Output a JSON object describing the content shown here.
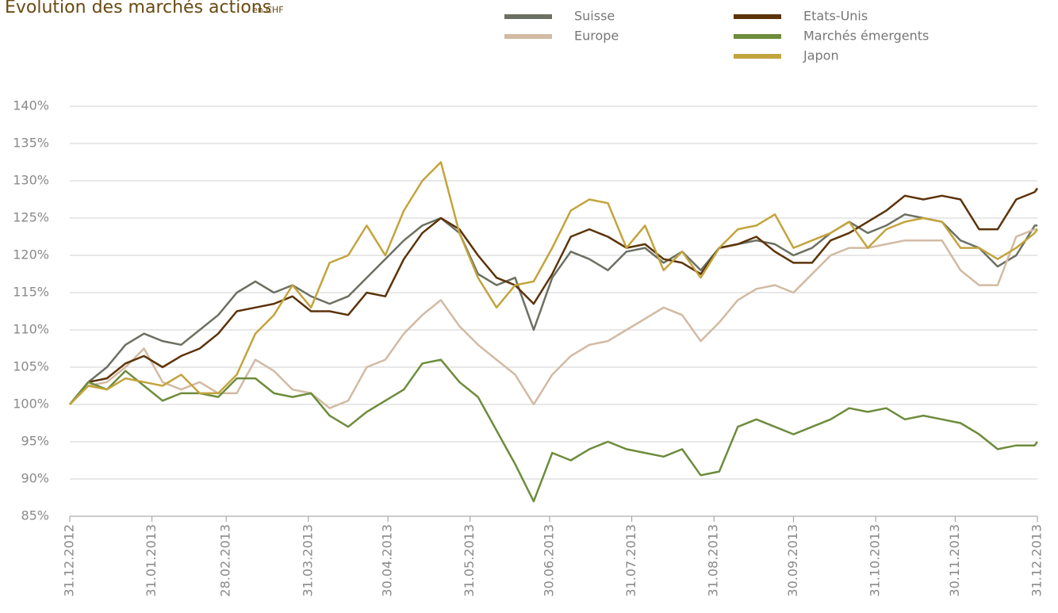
{
  "chart_data": {
    "type": "line",
    "title": "Evolution des marchés actions",
    "subtitle": "en CHF",
    "x": [
      "31.12.2012",
      "07.01.2013",
      "14.01.2013",
      "21.01.2013",
      "28.01.2013",
      "04.02.2013",
      "11.02.2013",
      "18.02.2013",
      "25.02.2013",
      "04.03.2013",
      "11.03.2013",
      "18.03.2013",
      "25.03.2013",
      "01.04.2013",
      "08.04.2013",
      "15.04.2013",
      "22.04.2013",
      "29.04.2013",
      "06.05.2013",
      "13.05.2013",
      "20.05.2013",
      "27.05.2013",
      "03.06.2013",
      "10.06.2013",
      "17.06.2013",
      "24.06.2013",
      "01.07.2013",
      "08.07.2013",
      "15.07.2013",
      "22.07.2013",
      "29.07.2013",
      "05.08.2013",
      "12.08.2013",
      "19.08.2013",
      "26.08.2013",
      "02.09.2013",
      "09.09.2013",
      "16.09.2013",
      "23.09.2013",
      "30.09.2013",
      "07.10.2013",
      "14.10.2013",
      "21.10.2013",
      "28.10.2013",
      "04.11.2013",
      "11.11.2013",
      "18.11.2013",
      "25.11.2013",
      "02.12.2013",
      "09.12.2013",
      "16.12.2013",
      "23.12.2013",
      "30.12.2013",
      "31.12.2013"
    ],
    "series": [
      {
        "name": "Suisse",
        "color": "#6b7062",
        "values": [
          100,
          103,
          105,
          108,
          109.5,
          108.5,
          108,
          110,
          112,
          115,
          116.5,
          115,
          116,
          114.5,
          113.5,
          114.5,
          117,
          119.5,
          122,
          124,
          125,
          123,
          117.5,
          116,
          117,
          110,
          117,
          120.5,
          119.5,
          118,
          120.5,
          121,
          119,
          120.5,
          118,
          121,
          121.5,
          122,
          121.5,
          120,
          121,
          123,
          124.5,
          123,
          124,
          125.5,
          125,
          124.5,
          122,
          121,
          118.5,
          120,
          124,
          124
        ]
      },
      {
        "name": "Europe",
        "color": "#d2baa3",
        "values": [
          100,
          102.5,
          103,
          105,
          107.5,
          103,
          102,
          103,
          101.5,
          101.5,
          106,
          104.5,
          102,
          101.5,
          99.5,
          100.5,
          105,
          106,
          109.5,
          112,
          114,
          110.5,
          108,
          106,
          104,
          100,
          104,
          106.5,
          108,
          108.5,
          110,
          111.5,
          113,
          112,
          108.5,
          111,
          114,
          115.5,
          116,
          115,
          117.5,
          120,
          121,
          121,
          121.5,
          122,
          122,
          122,
          118,
          116,
          116,
          122.5,
          123.5,
          123.5
        ]
      },
      {
        "name": "Etats-Unis",
        "color": "#5c3309",
        "values": [
          100,
          103,
          103.5,
          105.5,
          106.5,
          105,
          106.5,
          107.5,
          109.5,
          112.5,
          113,
          113.5,
          114.5,
          112.5,
          112.5,
          112,
          115,
          114.5,
          119.5,
          123,
          125,
          123.5,
          120,
          117,
          116,
          113.5,
          117.5,
          122.5,
          123.5,
          122.5,
          121,
          121.5,
          119.5,
          119,
          117.5,
          121,
          121.5,
          122.5,
          120.5,
          119,
          119,
          122,
          123,
          124.5,
          126,
          128,
          127.5,
          128,
          127.5,
          123.5,
          123.5,
          127.5,
          128.5,
          129
        ]
      },
      {
        "name": "Marchés émergents",
        "color": "#6d8c3c",
        "values": [
          100,
          103,
          102,
          104.5,
          102.5,
          100.5,
          101.5,
          101.5,
          101,
          103.5,
          103.5,
          101.5,
          101,
          101.5,
          98.5,
          97,
          99,
          100.5,
          102,
          105.5,
          106,
          103,
          101,
          96.5,
          92,
          87,
          93.5,
          92.5,
          94,
          95,
          94,
          93.5,
          93,
          94,
          90.5,
          91,
          97,
          98,
          97,
          96,
          97,
          98,
          99.5,
          99,
          99.5,
          98,
          98.5,
          98,
          97.5,
          96,
          94,
          94.5,
          94.5,
          95
        ]
      },
      {
        "name": "Japon",
        "color": "#c3a43c",
        "values": [
          100,
          102.5,
          102,
          103.5,
          103,
          102.5,
          104,
          101.5,
          101.5,
          104,
          109.5,
          112,
          116,
          113,
          119,
          120,
          124,
          120,
          126,
          130,
          132.5,
          123,
          117,
          113,
          116,
          116.5,
          121,
          126,
          127.5,
          127,
          121,
          124,
          118,
          120.5,
          117,
          121,
          123.5,
          124,
          125.5,
          121,
          122,
          123,
          124.5,
          121,
          123.5,
          124.5,
          125,
          124.5,
          121,
          121,
          119.5,
          121,
          123,
          123.5
        ]
      }
    ],
    "ylim": [
      85,
      140
    ],
    "yticks": [
      {
        "value": 85,
        "label": "85%"
      },
      {
        "value": 90,
        "label": "90%"
      },
      {
        "value": 95,
        "label": "95%"
      },
      {
        "value": 100,
        "label": "100%"
      },
      {
        "value": 105,
        "label": "105%"
      },
      {
        "value": 110,
        "label": "110%"
      },
      {
        "value": 115,
        "label": "115%"
      },
      {
        "value": 120,
        "label": "120%"
      },
      {
        "value": 125,
        "label": "125%"
      },
      {
        "value": 130,
        "label": "130%"
      },
      {
        "value": 135,
        "label": "135%"
      },
      {
        "value": 140,
        "label": "140%"
      }
    ],
    "xticks": [
      "31.12.2012",
      "31.01.2013",
      "28.02.2013",
      "31.03.2013",
      "30.04.2013",
      "31.05.2013",
      "30.06.2013",
      "31.07.2013",
      "31.08.2013",
      "30.09.2013",
      "31.10.2013",
      "30.11.2013",
      "31.12.2013"
    ],
    "xlim": [
      "31.12.2012",
      "31.12.2013"
    ],
    "grid": true
  }
}
